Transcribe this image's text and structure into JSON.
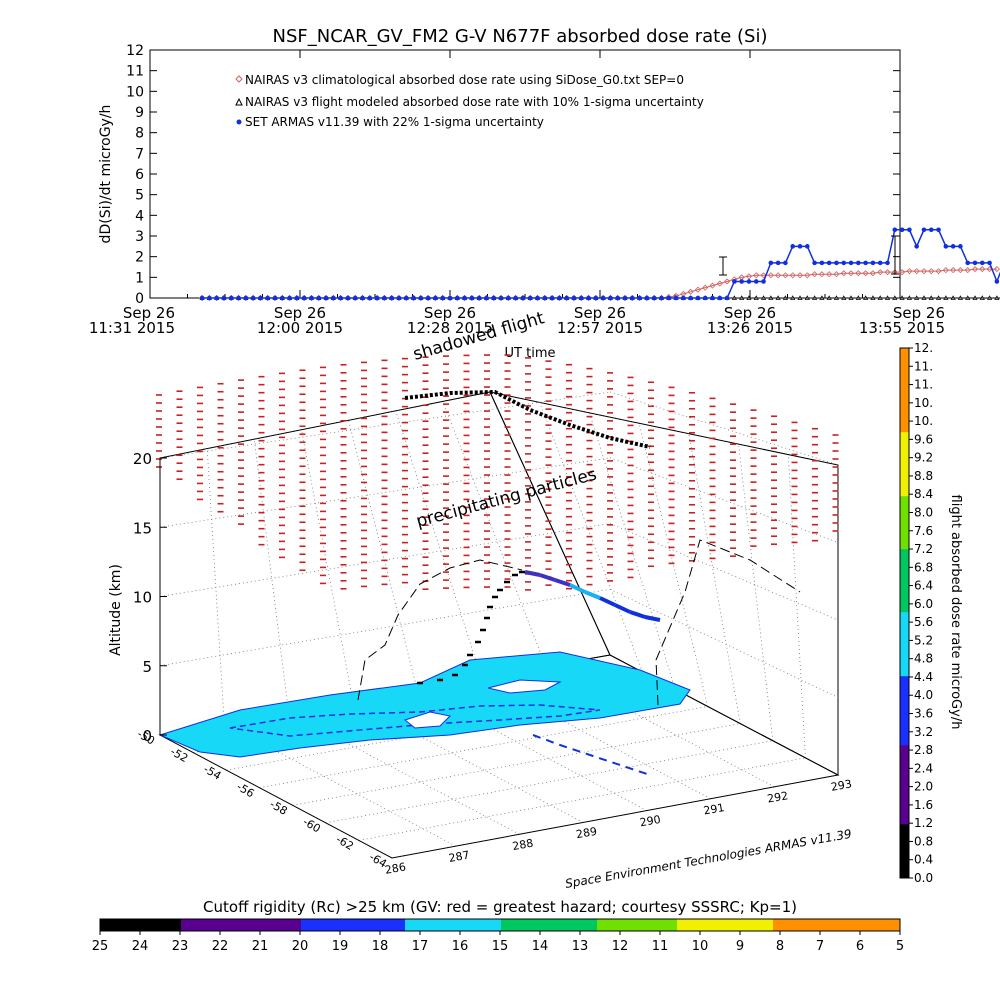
{
  "title": "NSF_NCAR_GV_FM2 G-V     N677F  absorbed dose rate (Si)",
  "chart_data": [
    {
      "type": "line",
      "ylabel": "dD(Si)/dt microGy/h",
      "xlabel": "UT time",
      "ylim": [
        0,
        12
      ],
      "yticks": [
        "0",
        "1",
        "2",
        "3",
        "4",
        "5",
        "6",
        "7",
        "8",
        "9",
        "10",
        "11",
        "12"
      ],
      "xticks": [
        {
          "top": "Sep 26",
          "bottom": "11:31 2015"
        },
        {
          "top": "Sep 26",
          "bottom": "12:00 2015"
        },
        {
          "top": "Sep 26",
          "bottom": "12:28 2015"
        },
        {
          "top": "Sep 26",
          "bottom": "12:57 2015"
        },
        {
          "top": "Sep 26",
          "bottom": "13:26 2015"
        },
        {
          "top": "Sep 26",
          "bottom": "13:55 2015"
        }
      ],
      "xlim_minutes_after_1131": [
        0,
        144
      ],
      "legend_position": "top-left",
      "series": [
        {
          "name": "NAIRAS v3 climatological absorbed dose rate using SiDose_G0.txt SEP=0",
          "color": "#d06060",
          "marker": "diamond",
          "start_minute": 10,
          "step_minutes": 1.4,
          "values": [
            0,
            0,
            0,
            0,
            0,
            0,
            0,
            0,
            0,
            0,
            0,
            0,
            0,
            0,
            0,
            0,
            0,
            0,
            0,
            0,
            0,
            0,
            0,
            0,
            0,
            0,
            0,
            0,
            0,
            0,
            0,
            0,
            0,
            0,
            0,
            0,
            0,
            0,
            0,
            0,
            0,
            0,
            0,
            0,
            0,
            0,
            0,
            0,
            0,
            0,
            0,
            0,
            0,
            0,
            0,
            0,
            0,
            0,
            0,
            0,
            0,
            0,
            0,
            0,
            0.05,
            0.1,
            0.2,
            0.3,
            0.4,
            0.5,
            0.6,
            0.7,
            0.8,
            0.9,
            1.0,
            1.05,
            1.1,
            1.1,
            1.1,
            1.1,
            1.1,
            1.1,
            1.1,
            1.1,
            1.15,
            1.15,
            1.15,
            1.15,
            1.2,
            1.2,
            1.2,
            1.2,
            1.2,
            1.25,
            1.25,
            1.25,
            1.25,
            1.3,
            1.3,
            1.3,
            1.3,
            1.3,
            1.35,
            1.35,
            1.35,
            1.35,
            1.4,
            1.4,
            1.4,
            1.4
          ]
        },
        {
          "name": "NAIRAS v3 flight modeled absorbed dose rate with 10% 1-sigma uncertainty",
          "color": "#000000",
          "marker": "triangle",
          "start_minute": 10,
          "step_minutes": 1.4,
          "values": [
            0,
            0,
            0,
            0,
            0,
            0,
            0,
            0,
            0,
            0,
            0,
            0,
            0,
            0,
            0,
            0,
            0,
            0,
            0,
            0,
            0,
            0,
            0,
            0,
            0,
            0,
            0,
            0,
            0,
            0,
            0,
            0,
            0,
            0,
            0,
            0,
            0,
            0,
            0,
            0,
            0,
            0,
            0,
            0,
            0,
            0,
            0,
            0,
            0,
            0,
            0,
            0,
            0,
            0,
            0,
            0,
            0,
            0,
            0,
            0,
            0,
            0,
            0,
            0,
            0,
            0,
            0,
            0,
            0,
            0,
            0,
            0,
            0,
            0,
            0,
            0,
            0,
            0,
            0,
            0,
            0,
            0,
            0,
            0,
            0,
            0,
            0,
            0,
            0,
            0,
            0,
            0,
            0,
            0,
            0,
            0,
            0,
            0,
            0,
            0,
            0,
            0,
            0,
            0,
            0,
            0,
            0,
            0,
            0,
            0,
            0
          ]
        },
        {
          "name": "SET ARMAS v11.39 with 22% 1-sigma uncertainty",
          "color": "#1030e0",
          "marker": "circle",
          "start_minute": 10,
          "step_minutes": 1.4,
          "values": [
            0,
            0,
            0,
            0,
            0,
            0,
            0,
            0,
            0,
            0,
            0,
            0,
            0,
            0,
            0,
            0,
            0,
            0,
            0,
            0,
            0,
            0,
            0,
            0,
            0,
            0,
            0,
            0,
            0,
            0,
            0,
            0,
            0,
            0,
            0,
            0,
            0,
            0,
            0,
            0,
            0,
            0,
            0,
            0,
            0,
            0,
            0,
            0,
            0,
            0,
            0,
            0,
            0,
            0,
            0,
            0,
            0,
            0,
            0,
            0,
            0,
            0,
            0,
            0,
            0,
            0,
            0,
            0,
            0,
            0,
            0,
            0,
            0,
            0.8,
            0.8,
            0.8,
            0.8,
            0.8,
            1.7,
            1.7,
            1.7,
            2.5,
            2.5,
            2.5,
            1.7,
            1.7,
            1.7,
            1.7,
            1.7,
            1.7,
            1.7,
            1.7,
            1.7,
            1.7,
            1.7,
            3.3,
            3.3,
            3.3,
            2.5,
            3.3,
            3.3,
            3.3,
            2.5,
            2.5,
            2.5,
            1.7,
            1.7,
            1.7,
            1.7,
            0.8,
            1.7,
            1.7,
            1.7,
            2.5,
            2.5,
            1.7,
            2.5,
            2.5,
            2.5,
            2.5,
            2.5,
            2.5
          ]
        }
      ]
    },
    {
      "type": "scatter",
      "subtype": "3d-flight-track",
      "zlabel": "Altitude (km)",
      "zticks": [
        "0",
        "5",
        "10",
        "15",
        "20"
      ],
      "lat_ticks": [
        "-50",
        "-52",
        "-54",
        "-56",
        "-58",
        "-60",
        "-62",
        "-64"
      ],
      "lon_ticks": [
        "286",
        "287",
        "288",
        "289",
        "290",
        "291",
        "292",
        "293"
      ],
      "annotations": [
        "shadowed flight",
        "UT time",
        "precipitating particles"
      ],
      "credit": "Space Environment Technologies ARMAS v11.39",
      "colorbar_label": "flight absorbed dose rate microGy/h",
      "colorbar_ticks": [
        "0.0",
        "0.4",
        "0.8",
        "1.2",
        "1.6",
        "2.0",
        "2.4",
        "2.8",
        "3.2",
        "3.6",
        "4.0",
        "4.4",
        "4.8",
        "5.2",
        "5.6",
        "6.0",
        "6.4",
        "6.8",
        "7.2",
        "7.6",
        "8.0",
        "8.4",
        "8.8",
        "9.2",
        "9.6",
        "10.",
        "10.",
        "11.",
        "11.",
        "12."
      ]
    }
  ],
  "rigidity_bar": {
    "label": "Cutoff rigidity (Rc) >25 km (GV: red = greatest hazard; courtesy SSSRC; Kp=1)",
    "ticks": [
      "25",
      "24",
      "23",
      "22",
      "21",
      "20",
      "19",
      "18",
      "17",
      "16",
      "15",
      "14",
      "13",
      "12",
      "11",
      "10",
      "9",
      "8",
      "7",
      "6",
      "5"
    ]
  },
  "colors": {
    "nairas_clim": "#d06060",
    "armas": "#1030e0",
    "contour_fill": "#18d8f8",
    "precip": "#cc2020"
  }
}
